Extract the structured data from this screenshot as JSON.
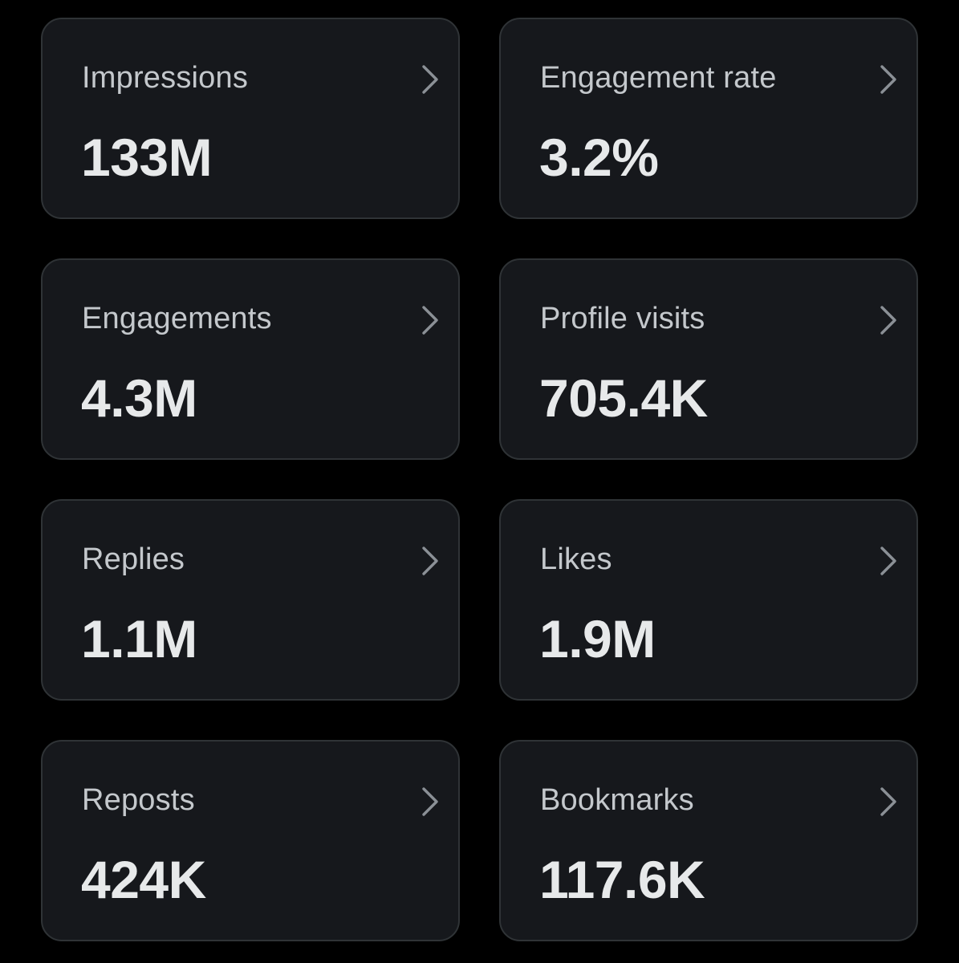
{
  "metrics": [
    {
      "label": "Impressions",
      "value": "133M",
      "icon": "chevron-right-icon"
    },
    {
      "label": "Engagement rate",
      "value": "3.2%",
      "icon": "chevron-right-icon"
    },
    {
      "label": "Engagements",
      "value": "4.3M",
      "icon": "chevron-right-icon"
    },
    {
      "label": "Profile visits",
      "value": "705.4K",
      "icon": "chevron-right-icon"
    },
    {
      "label": "Replies",
      "value": "1.1M",
      "icon": "chevron-right-icon"
    },
    {
      "label": "Likes",
      "value": "1.9M",
      "icon": "chevron-right-icon"
    },
    {
      "label": "Reposts",
      "value": "424K",
      "icon": "chevron-right-icon"
    },
    {
      "label": "Bookmarks",
      "value": "117.6K",
      "icon": "chevron-right-icon"
    }
  ],
  "colors": {
    "background": "#000000",
    "card": "#16181c",
    "card_border": "#2f3336",
    "label": "#c4c8cc",
    "value": "#e7e9ea",
    "chevron": "#8b9096"
  }
}
